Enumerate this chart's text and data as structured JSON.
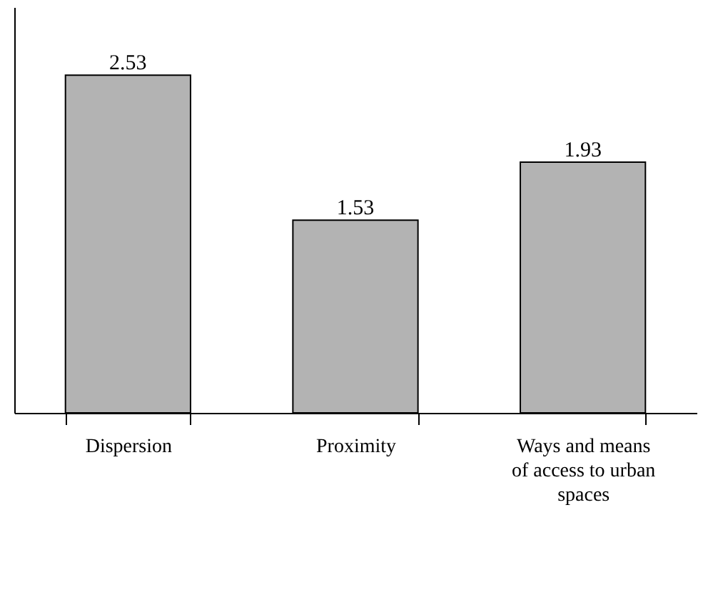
{
  "chart_data": {
    "type": "bar",
    "categories": [
      "Dispersion",
      "Proximity",
      "Ways and means\nof access to urban\nspaces"
    ],
    "values": [
      2.53,
      1.53,
      1.93
    ],
    "color": "#b3b3b3",
    "data_labels": true,
    "ylim": [
      0.2,
      3.0
    ],
    "tick_labels": "x",
    "grid": false
  }
}
